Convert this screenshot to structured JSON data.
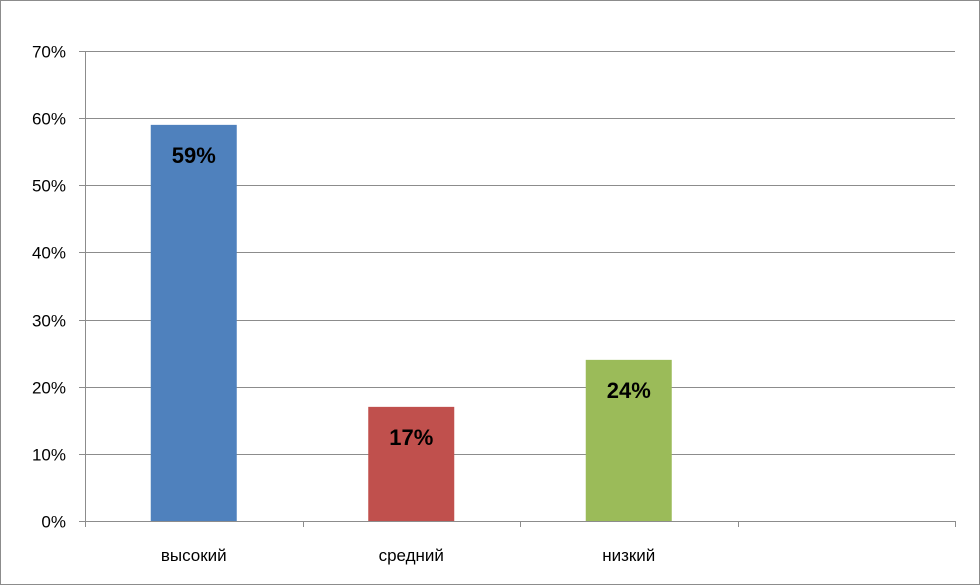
{
  "chart_data": {
    "type": "bar",
    "title": "",
    "xlabel": "",
    "ylabel": "",
    "categories": [
      "высокий",
      "средний",
      "низкий",
      ""
    ],
    "values": [
      0.59,
      0.17,
      0.24,
      null
    ],
    "data_labels": [
      "59%",
      "17%",
      "24%",
      ""
    ],
    "colors": [
      "#4f81bd",
      "#c0504d",
      "#9bbb59",
      ""
    ],
    "ylim": [
      0,
      0.7
    ],
    "yticks": [
      0,
      0.1,
      0.2,
      0.3,
      0.4,
      0.5,
      0.6,
      0.7
    ],
    "ytick_labels": [
      "0%",
      "10%",
      "20%",
      "30%",
      "40%",
      "50%",
      "60%",
      "70%"
    ],
    "grid": true,
    "legend": "none"
  }
}
